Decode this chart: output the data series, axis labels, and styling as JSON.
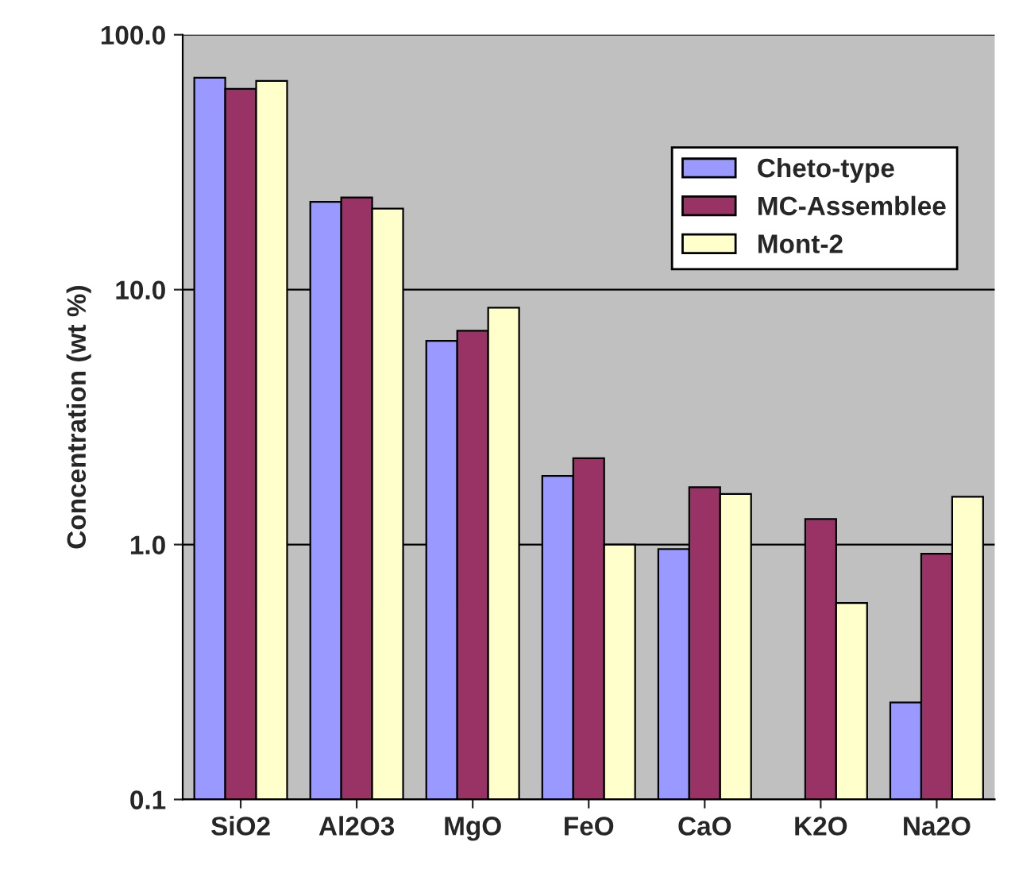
{
  "chart_data": {
    "type": "bar",
    "ylabel": "Concentration (wt %)",
    "categories": [
      "SiO2",
      "Al2O3",
      "MgO",
      "FeO",
      "CaO",
      "K2O",
      "Na2O"
    ],
    "series": [
      {
        "name": "Cheto-type",
        "color": "#9999ff",
        "values": [
          67.8,
          22.1,
          6.3,
          1.86,
          0.96,
          null,
          0.24
        ]
      },
      {
        "name": "MC-Assemblee",
        "color": "#993366",
        "values": [
          61.3,
          23.0,
          6.9,
          2.18,
          1.68,
          1.26,
          0.92
        ]
      },
      {
        "name": "Mont-2",
        "color": "#ffffcc",
        "values": [
          65.9,
          20.8,
          8.5,
          1.0,
          1.58,
          0.59,
          1.54
        ]
      }
    ],
    "log": "y",
    "ylim": [
      0.1,
      100
    ],
    "yticks": [
      {
        "value": 0.1,
        "label": "0.1"
      },
      {
        "value": 1,
        "label": "1.0"
      },
      {
        "value": 10,
        "label": "10.0"
      },
      {
        "value": 100,
        "label": "100.0"
      }
    ],
    "grid": "y",
    "legend": "top right"
  }
}
